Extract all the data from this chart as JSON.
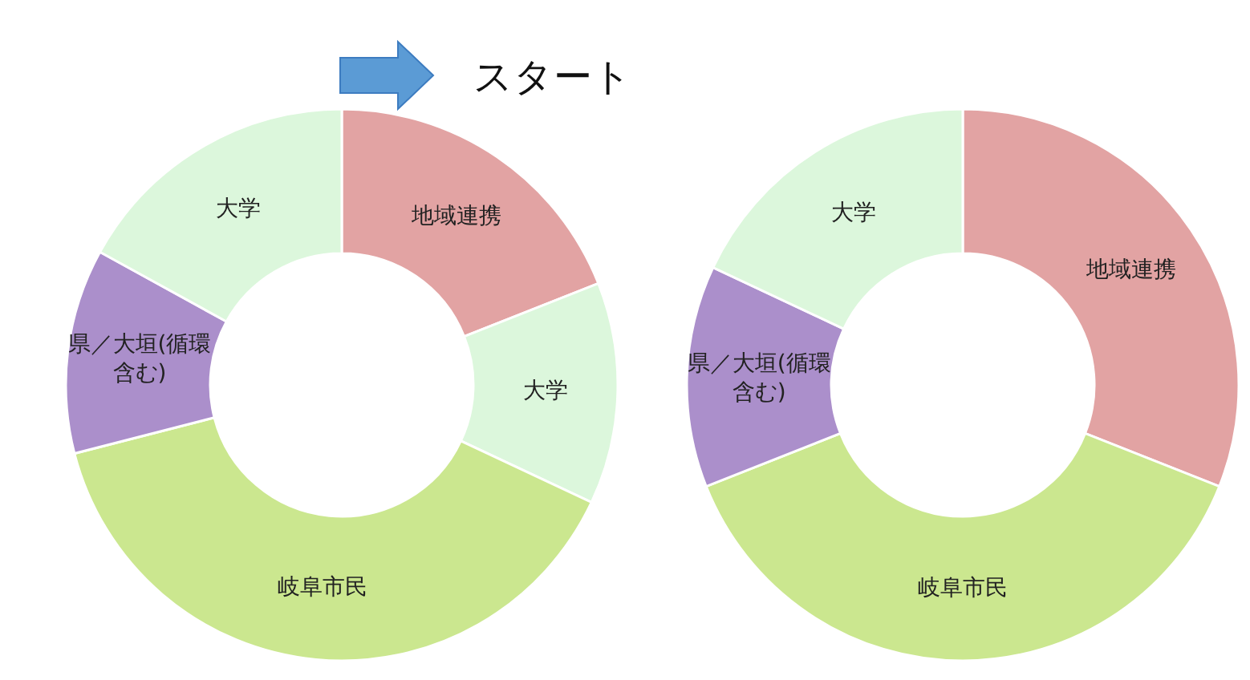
{
  "chart_data": [
    {
      "type": "donut",
      "categories": [
        "地域連携",
        "大学",
        "岐阜市民",
        "県／大垣(循環含む)",
        "大学"
      ],
      "values": [
        19,
        13,
        39,
        12,
        17
      ],
      "colors": [
        "#e2a3a3",
        "#dcf7dc",
        "#cbe78f",
        "#ab8fcb",
        "#dcf7dc"
      ],
      "annotations": [
        "スタート"
      ],
      "legend": false
    },
    {
      "type": "donut",
      "categories": [
        "地域連携",
        "岐阜市民",
        "県／大垣(循環含む)",
        "大学"
      ],
      "values": [
        31,
        38,
        13,
        18
      ],
      "colors": [
        "#e2a3a3",
        "#cbe78f",
        "#ab8fcb",
        "#dcf7dc"
      ],
      "legend": false
    }
  ]
}
